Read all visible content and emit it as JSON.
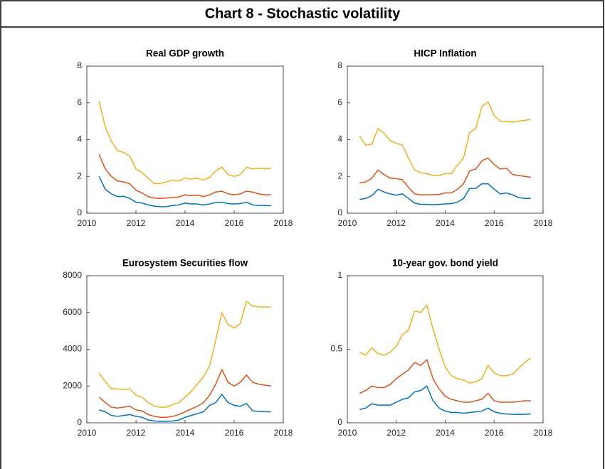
{
  "title": "Chart 8 - Stochastic volatility",
  "chart_data": [
    {
      "type": "line",
      "title": "Real GDP growth",
      "x": [
        2010.5,
        2010.75,
        2011,
        2011.25,
        2011.5,
        2011.75,
        2012,
        2012.25,
        2012.5,
        2012.75,
        2013,
        2013.25,
        2013.5,
        2013.75,
        2014,
        2014.25,
        2014.5,
        2014.75,
        2015,
        2015.25,
        2015.5,
        2015.75,
        2016,
        2016.25,
        2016.5,
        2016.75,
        2017,
        2017.25,
        2017.5
      ],
      "xlim": [
        2010,
        2018
      ],
      "xticks": [
        2010,
        2012,
        2014,
        2016,
        2018
      ],
      "ylim": [
        0,
        8
      ],
      "yticks": [
        0,
        2,
        4,
        6,
        8
      ],
      "grid": false,
      "series": [
        {
          "color": "#0072BD",
          "values": [
            2.0,
            1.3,
            1.05,
            0.9,
            0.92,
            0.8,
            0.6,
            0.55,
            0.45,
            0.38,
            0.35,
            0.36,
            0.42,
            0.45,
            0.55,
            0.5,
            0.5,
            0.45,
            0.5,
            0.58,
            0.6,
            0.52,
            0.5,
            0.52,
            0.6,
            0.45,
            0.42,
            0.42,
            0.4
          ]
        },
        {
          "color": "#D95319",
          "values": [
            3.2,
            2.4,
            2.0,
            1.75,
            1.7,
            1.6,
            1.25,
            1.1,
            0.9,
            0.82,
            0.8,
            0.82,
            0.85,
            0.88,
            1.0,
            0.95,
            0.98,
            0.9,
            1.0,
            1.15,
            1.2,
            1.05,
            1.0,
            1.05,
            1.2,
            1.15,
            1.05,
            1.0,
            1.0
          ]
        },
        {
          "color": "#EDB120",
          "values": [
            6.1,
            4.7,
            3.9,
            3.4,
            3.3,
            3.1,
            2.4,
            2.2,
            1.9,
            1.6,
            1.62,
            1.7,
            1.8,
            1.75,
            1.92,
            1.85,
            1.9,
            1.8,
            1.95,
            2.3,
            2.5,
            2.1,
            2.0,
            2.1,
            2.5,
            2.4,
            2.45,
            2.4,
            2.45
          ]
        }
      ]
    },
    {
      "type": "line",
      "title": "HICP Inflation",
      "x": [
        2010.5,
        2010.75,
        2011,
        2011.25,
        2011.5,
        2011.75,
        2012,
        2012.25,
        2012.5,
        2012.75,
        2013,
        2013.25,
        2013.5,
        2013.75,
        2014,
        2014.25,
        2014.5,
        2014.75,
        2015,
        2015.25,
        2015.5,
        2015.75,
        2016,
        2016.25,
        2016.5,
        2016.75,
        2017,
        2017.25,
        2017.5
      ],
      "xlim": [
        2010,
        2018
      ],
      "xticks": [
        2010,
        2012,
        2014,
        2016,
        2018
      ],
      "ylim": [
        0,
        8
      ],
      "yticks": [
        0,
        2,
        4,
        6,
        8
      ],
      "grid": false,
      "series": [
        {
          "color": "#0072BD",
          "values": [
            0.75,
            0.8,
            0.95,
            1.3,
            1.15,
            1.05,
            0.98,
            1.05,
            0.8,
            0.55,
            0.48,
            0.48,
            0.46,
            0.48,
            0.5,
            0.52,
            0.6,
            0.8,
            1.35,
            1.35,
            1.6,
            1.6,
            1.3,
            1.05,
            1.1,
            1.0,
            0.85,
            0.8,
            0.8
          ]
        },
        {
          "color": "#D95319",
          "values": [
            1.65,
            1.7,
            1.9,
            2.35,
            2.1,
            1.9,
            1.88,
            1.82,
            1.4,
            1.05,
            1.0,
            1.0,
            1.0,
            1.02,
            1.1,
            1.1,
            1.3,
            1.6,
            2.3,
            2.4,
            2.85,
            3.0,
            2.65,
            2.4,
            2.45,
            2.1,
            2.05,
            2.0,
            1.95
          ]
        },
        {
          "color": "#EDB120",
          "values": [
            4.2,
            3.7,
            3.75,
            4.6,
            4.35,
            3.95,
            3.8,
            3.7,
            3.0,
            2.35,
            2.2,
            2.15,
            2.05,
            2.05,
            2.15,
            2.15,
            2.6,
            3.0,
            4.4,
            4.6,
            5.8,
            6.05,
            5.3,
            5.0,
            5.0,
            4.95,
            5.0,
            5.05,
            5.1
          ]
        }
      ]
    },
    {
      "type": "line",
      "title": "Eurosystem Securities flow",
      "x": [
        2010.5,
        2010.75,
        2011,
        2011.25,
        2011.5,
        2011.75,
        2012,
        2012.25,
        2012.5,
        2012.75,
        2013,
        2013.25,
        2013.5,
        2013.75,
        2014,
        2014.25,
        2014.5,
        2014.75,
        2015,
        2015.25,
        2015.5,
        2015.75,
        2016,
        2016.25,
        2016.5,
        2016.75,
        2017,
        2017.25,
        2017.5
      ],
      "xlim": [
        2010,
        2018
      ],
      "xticks": [
        2010,
        2012,
        2014,
        2016,
        2018
      ],
      "ylim": [
        0,
        8000
      ],
      "yticks": [
        0,
        2000,
        4000,
        6000,
        8000
      ],
      "grid": false,
      "series": [
        {
          "color": "#0072BD",
          "values": [
            700,
            600,
            400,
            350,
            400,
            450,
            350,
            300,
            150,
            100,
            80,
            80,
            100,
            150,
            300,
            400,
            500,
            600,
            950,
            1100,
            1550,
            1100,
            950,
            900,
            1050,
            650,
            620,
            600,
            600
          ]
        },
        {
          "color": "#D95319",
          "values": [
            1400,
            1100,
            850,
            800,
            850,
            900,
            700,
            650,
            450,
            350,
            300,
            300,
            350,
            450,
            600,
            750,
            900,
            1100,
            1500,
            2100,
            2900,
            2200,
            2000,
            2200,
            2600,
            2200,
            2100,
            2050,
            2000
          ]
        },
        {
          "color": "#EDB120",
          "values": [
            2700,
            2250,
            1850,
            1850,
            1800,
            1850,
            1500,
            1400,
            1100,
            900,
            850,
            850,
            1000,
            1100,
            1400,
            1700,
            2100,
            2500,
            3100,
            4500,
            6000,
            5350,
            5150,
            5400,
            6600,
            6350,
            6300,
            6300,
            6300
          ]
        }
      ]
    },
    {
      "type": "line",
      "title": "10-year gov. bond yield",
      "x": [
        2010.5,
        2010.75,
        2011,
        2011.25,
        2011.5,
        2011.75,
        2012,
        2012.25,
        2012.5,
        2012.75,
        2013,
        2013.25,
        2013.5,
        2013.75,
        2014,
        2014.25,
        2014.5,
        2014.75,
        2015,
        2015.25,
        2015.5,
        2015.75,
        2016,
        2016.25,
        2016.5,
        2016.75,
        2017,
        2017.25,
        2017.5
      ],
      "xlim": [
        2010,
        2018
      ],
      "xticks": [
        2010,
        2012,
        2014,
        2016,
        2018
      ],
      "ylim": [
        0,
        1
      ],
      "yticks": [
        0,
        0.5,
        1
      ],
      "grid": false,
      "series": [
        {
          "color": "#0072BD",
          "values": [
            0.09,
            0.1,
            0.13,
            0.12,
            0.12,
            0.12,
            0.14,
            0.16,
            0.17,
            0.21,
            0.22,
            0.25,
            0.15,
            0.1,
            0.08,
            0.07,
            0.07,
            0.065,
            0.07,
            0.075,
            0.08,
            0.1,
            0.075,
            0.065,
            0.06,
            0.058,
            0.057,
            0.058,
            0.06
          ]
        },
        {
          "color": "#D95319",
          "values": [
            0.2,
            0.22,
            0.25,
            0.24,
            0.24,
            0.26,
            0.3,
            0.33,
            0.36,
            0.41,
            0.39,
            0.43,
            0.3,
            0.23,
            0.18,
            0.16,
            0.15,
            0.14,
            0.14,
            0.15,
            0.16,
            0.2,
            0.15,
            0.14,
            0.14,
            0.14,
            0.145,
            0.15,
            0.15
          ]
        },
        {
          "color": "#EDB120",
          "values": [
            0.48,
            0.46,
            0.51,
            0.47,
            0.46,
            0.48,
            0.52,
            0.6,
            0.63,
            0.76,
            0.75,
            0.8,
            0.64,
            0.5,
            0.38,
            0.32,
            0.3,
            0.29,
            0.27,
            0.28,
            0.3,
            0.39,
            0.34,
            0.32,
            0.32,
            0.33,
            0.37,
            0.41,
            0.44
          ]
        }
      ]
    }
  ]
}
